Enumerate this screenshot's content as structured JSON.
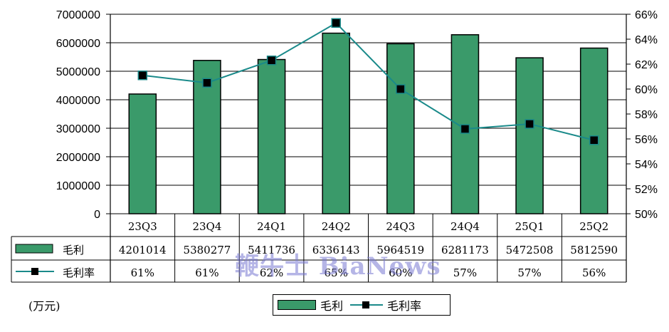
{
  "chart_data": {
    "type": "bar",
    "categories": [
      "23Q3",
      "23Q4",
      "24Q1",
      "24Q2",
      "24Q3",
      "24Q4",
      "25Q1",
      "25Q2"
    ],
    "series": [
      {
        "name": "毛利",
        "type": "bar",
        "axis": "left",
        "values": [
          4201014,
          5380277,
          5411736,
          6336143,
          5964519,
          6281173,
          5472508,
          5812590
        ],
        "labels": [
          "4201014",
          "5380277",
          "5411736",
          "6336143",
          "5964519",
          "6281173",
          "5472508",
          "5812590"
        ]
      },
      {
        "name": "毛利率",
        "type": "line",
        "axis": "right",
        "values": [
          61.1,
          60.5,
          62.3,
          65.3,
          60.0,
          56.8,
          57.2,
          55.9
        ],
        "labels": [
          "61%",
          "61%",
          "62%",
          "65%",
          "60%",
          "57%",
          "57%",
          "56%"
        ]
      }
    ],
    "ylim": [
      0,
      7000000
    ],
    "yticks": [
      "0",
      "1000000",
      "2000000",
      "3000000",
      "4000000",
      "5000000",
      "6000000",
      "7000000"
    ],
    "y2lim": [
      50,
      66
    ],
    "y2ticks": [
      "50%",
      "52%",
      "54%",
      "56%",
      "58%",
      "60%",
      "62%",
      "64%",
      "66%"
    ],
    "unit_label": "(万元)",
    "legend": [
      {
        "name": "毛利",
        "kind": "bar"
      },
      {
        "name": "毛利率",
        "kind": "line"
      }
    ],
    "legend_position": "bottom-center",
    "grid": true,
    "data_table": true,
    "colors": {
      "bar": "#3a9a6a",
      "line": "#1a8a8a",
      "marker": "#000000"
    }
  },
  "watermark": "鞭牛士 BiaNews"
}
